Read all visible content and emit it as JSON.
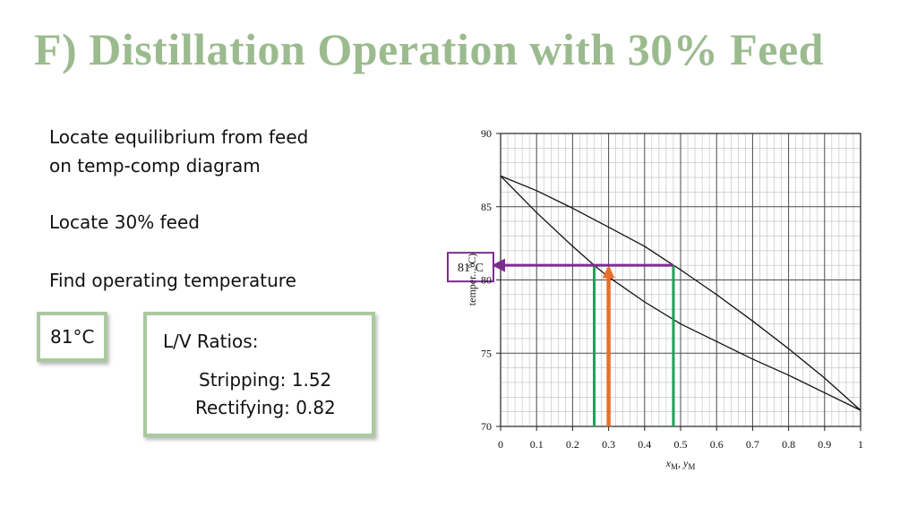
{
  "slide": {
    "title": "F) Distillation Operation with 30% Feed",
    "bullets": [
      "Locate equilibrium from feed",
      "on temp-comp diagram",
      "Locate 30% feed",
      "Find operating temperature"
    ],
    "temp_box": "81°C",
    "ratios": {
      "heading": "L/V Ratios:",
      "stripping": "Stripping: 1.52",
      "rectifying": "Rectifying: 0.82"
    },
    "colors": {
      "title": "#9bbb8f",
      "box_border": "#a9c99f",
      "purple": "#7b2c8e",
      "orange": "#e8702a",
      "green": "#1fa05a"
    }
  },
  "chart_data": {
    "type": "line",
    "title": "",
    "xlabel_parts": [
      "x",
      "M",
      ", ",
      "y",
      "M"
    ],
    "ylabel": "temper...°C)",
    "xlim": [
      0,
      1
    ],
    "ylim": [
      70,
      90
    ],
    "x_ticks": [
      "0",
      "0.1",
      "0.2",
      "0.3",
      "0.4",
      "0.5",
      "0.6",
      "0.7",
      "0.8",
      "0.9",
      "1"
    ],
    "y_ticks": [
      "70",
      "75",
      "80",
      "85",
      "90"
    ],
    "grid": "major every 0.1 x / 5 y, minor every 0.02 x / 1 y",
    "series": [
      {
        "curve": "bubble",
        "x": [
          0,
          0.1,
          0.2,
          0.26,
          0.3,
          0.4,
          0.5,
          0.6,
          0.7,
          0.8,
          0.9,
          1.0
        ],
        "y": [
          87.1,
          84.6,
          82.3,
          81.0,
          80.2,
          78.5,
          77.0,
          75.8,
          74.6,
          73.5,
          72.3,
          71.1
        ]
      },
      {
        "curve": "dew",
        "x": [
          0,
          0.1,
          0.2,
          0.3,
          0.4,
          0.48,
          0.5,
          0.6,
          0.7,
          0.8,
          0.9,
          1.0
        ],
        "y": [
          87.1,
          86.1,
          84.9,
          83.6,
          82.3,
          81.0,
          80.7,
          79.0,
          77.2,
          75.3,
          73.3,
          71.1
        ]
      }
    ],
    "annotations": {
      "operating_temp_label": "81°C",
      "operating_temp": 81,
      "feed_x": 0.3,
      "liquid_x": 0.26,
      "vapor_x": 0.48,
      "purple_arrow": {
        "from_x": 0.48,
        "to_x": 0,
        "y": 81
      },
      "orange_arrow": {
        "x": 0.3,
        "from_y": 70,
        "to_y": 81
      },
      "green_lines": [
        {
          "x": 0.26,
          "y": [
            70,
            81
          ]
        },
        {
          "x": 0.48,
          "y": [
            70,
            81
          ]
        }
      ]
    }
  }
}
